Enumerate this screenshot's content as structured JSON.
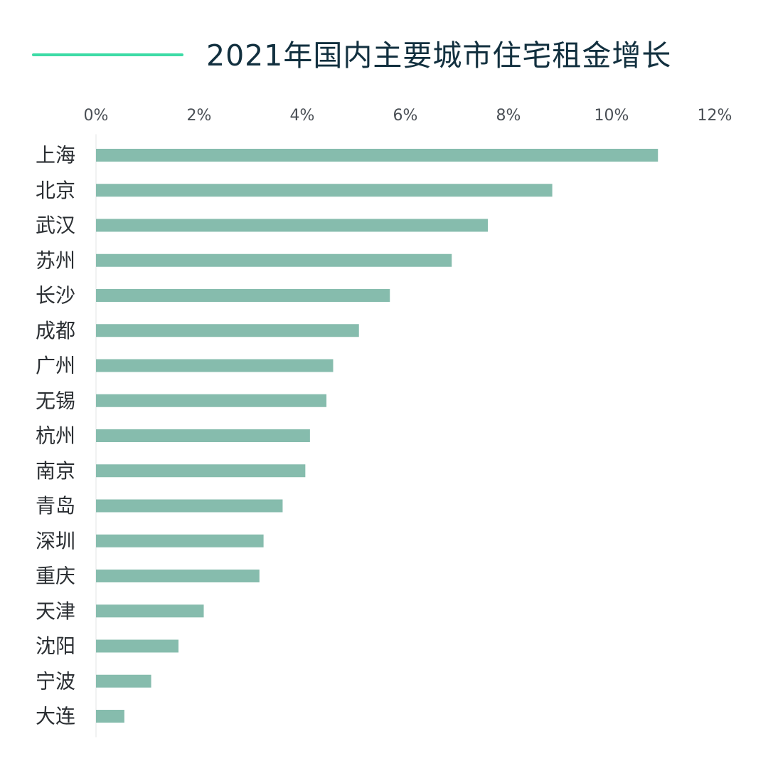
{
  "colors": {
    "accent": "#3ddba6",
    "bar": "#86bcad",
    "title": "#12303f",
    "axis_line": "#e3e6e6"
  },
  "chart_data": {
    "type": "bar",
    "orientation": "horizontal",
    "title": "2021年国内主要城市住宅租金增长",
    "xlabel": "",
    "ylabel": "",
    "xlim": [
      0,
      12
    ],
    "x_ticks": [
      "0%",
      "2%",
      "4%",
      "6%",
      "8%",
      "10%",
      "12%"
    ],
    "x_axis_position": "top",
    "grid": false,
    "categories": [
      "上海",
      "北京",
      "武汉",
      "苏州",
      "长沙",
      "成都",
      "广州",
      "无锡",
      "杭州",
      "南京",
      "青岛",
      "深圳",
      "重庆",
      "天津",
      "沈阳",
      "宁波",
      "大连"
    ],
    "values": [
      10.9,
      8.85,
      7.6,
      6.9,
      5.7,
      5.1,
      4.6,
      4.47,
      4.15,
      4.06,
      3.62,
      3.25,
      3.17,
      2.09,
      1.6,
      1.07,
      0.55
    ]
  }
}
